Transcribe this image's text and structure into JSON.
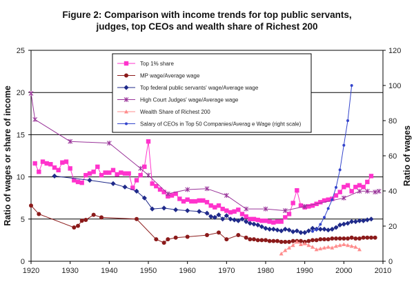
{
  "chart_data": {
    "type": "line",
    "title_lines": [
      "Figure 2: Comparison with income trends for top public servants,",
      "judges, top CEOs and wealth share of Richest 200"
    ],
    "xlabel": "",
    "ylabel": "Ratio of wages or share of income",
    "y2label": "Ratio of wages",
    "xlim": [
      1920,
      2010
    ],
    "ylim": [
      0,
      25
    ],
    "y2lim": [
      0,
      120
    ],
    "x_ticks": [
      1920,
      1930,
      1940,
      1950,
      1960,
      1970,
      1980,
      1990,
      2000,
      2010
    ],
    "y_ticks": [
      0,
      5,
      10,
      15,
      20,
      25
    ],
    "y2_ticks": [
      0,
      20,
      40,
      60,
      80,
      100,
      120
    ],
    "grid": "horizontal",
    "legend_position": "top-center",
    "series": [
      {
        "name": "Top 1% share",
        "color": "#ff33cc",
        "marker": "square",
        "axis": "left",
        "x": [
          1921,
          1922,
          1923,
          1924,
          1925,
          1926,
          1927,
          1928,
          1929,
          1930,
          1931,
          1932,
          1933,
          1934,
          1935,
          1936,
          1937,
          1938,
          1939,
          1940,
          1941,
          1942,
          1943,
          1944,
          1945,
          1946,
          1947,
          1948,
          1949,
          1950,
          1951,
          1952,
          1953,
          1954,
          1955,
          1956,
          1957,
          1958,
          1959,
          1960,
          1961,
          1962,
          1963,
          1964,
          1965,
          1966,
          1967,
          1968,
          1969,
          1970,
          1971,
          1972,
          1973,
          1974,
          1975,
          1976,
          1977,
          1978,
          1979,
          1980,
          1981,
          1982,
          1983,
          1984,
          1985,
          1986,
          1987,
          1988,
          1989,
          1990,
          1991,
          1992,
          1993,
          1994,
          1995,
          1996,
          1997,
          1998,
          1999,
          2000,
          2001,
          2002,
          2003,
          2004,
          2005,
          2006,
          2007
        ],
        "values": [
          11.6,
          10.6,
          11.8,
          11.6,
          11.5,
          11.1,
          10.8,
          11.7,
          11.8,
          11.0,
          9.6,
          9.4,
          9.3,
          10.2,
          10.4,
          10.6,
          11.2,
          10.2,
          10.5,
          10.5,
          10.8,
          10.3,
          10.5,
          10.4,
          10.4,
          8.7,
          9.6,
          10.2,
          11.2,
          14.2,
          9.2,
          8.9,
          8.5,
          8.2,
          7.7,
          7.8,
          8.0,
          7.4,
          7.1,
          7.3,
          7.1,
          7.1,
          7.2,
          7.2,
          7.0,
          6.6,
          6.4,
          6.6,
          6.2,
          6.0,
          5.8,
          5.9,
          6.1,
          5.6,
          5.3,
          5.0,
          5.0,
          4.9,
          4.8,
          4.8,
          4.7,
          4.6,
          4.7,
          4.7,
          5.2,
          5.6,
          6.9,
          8.4,
          6.6,
          6.4,
          6.5,
          6.6,
          6.8,
          7.0,
          7.2,
          7.3,
          7.4,
          7.8,
          8.2,
          8.8,
          9.0,
          8.3,
          8.8,
          9.0,
          8.8,
          9.4,
          10.1
        ]
      },
      {
        "name": "MP wage/Average  wage",
        "color": "#8b1a1a",
        "marker": "circle",
        "axis": "left",
        "x": [
          1920,
          1922,
          1931,
          1932,
          1933,
          1934,
          1936,
          1938,
          1947,
          1952,
          1954,
          1955,
          1957,
          1960,
          1965,
          1968,
          1970,
          1973,
          1975,
          1976,
          1977,
          1978,
          1979,
          1980,
          1981,
          1982,
          1983,
          1984,
          1985,
          1986,
          1987,
          1988,
          1989,
          1990,
          1991,
          1992,
          1993,
          1994,
          1995,
          1996,
          1997,
          1998,
          1999,
          2000,
          2001,
          2002,
          2003,
          2004,
          2005,
          2006,
          2007,
          2008
        ],
        "values": [
          6.6,
          5.6,
          4.0,
          4.2,
          4.8,
          4.9,
          5.5,
          5.2,
          5.0,
          2.6,
          2.2,
          2.6,
          2.8,
          2.9,
          3.1,
          3.4,
          2.6,
          3.1,
          2.8,
          2.6,
          2.6,
          2.5,
          2.5,
          2.5,
          2.4,
          2.4,
          2.4,
          2.3,
          2.3,
          2.3,
          2.4,
          2.4,
          2.4,
          2.3,
          2.4,
          2.5,
          2.5,
          2.6,
          2.6,
          2.6,
          2.7,
          2.7,
          2.7,
          2.7,
          2.7,
          2.8,
          2.7,
          2.7,
          2.8,
          2.8,
          2.8,
          2.8
        ]
      },
      {
        "name": "Top federal public servants' wage/Average  wage",
        "color": "#1f2a8a",
        "marker": "diamond",
        "axis": "left",
        "x": [
          1926,
          1935,
          1941,
          1944,
          1947,
          1949,
          1951,
          1954,
          1957,
          1960,
          1963,
          1965,
          1966,
          1967,
          1968,
          1969,
          1970,
          1971,
          1972,
          1973,
          1974,
          1975,
          1976,
          1977,
          1978,
          1979,
          1980,
          1981,
          1982,
          1983,
          1984,
          1985,
          1986,
          1987,
          1988,
          1989,
          1990,
          1991,
          1992,
          1993,
          1994,
          1995,
          1996,
          1997,
          1998,
          1999,
          2000,
          2001,
          2002,
          2003,
          2004,
          2005,
          2006,
          2007
        ],
        "values": [
          10.1,
          9.6,
          9.2,
          8.8,
          8.3,
          7.5,
          6.2,
          6.3,
          6.1,
          6.0,
          5.9,
          5.7,
          5.3,
          5.2,
          5.5,
          5.0,
          5.4,
          5.0,
          4.9,
          4.8,
          5.0,
          4.7,
          4.5,
          4.4,
          4.3,
          4.1,
          3.9,
          3.8,
          3.8,
          3.7,
          3.6,
          3.8,
          3.7,
          3.5,
          3.6,
          3.4,
          3.4,
          3.6,
          3.9,
          3.8,
          3.8,
          3.8,
          3.7,
          3.8,
          4.0,
          4.3,
          4.4,
          4.5,
          4.7,
          4.7,
          4.8,
          4.8,
          4.9,
          5.0
        ]
      },
      {
        "name": "High Court Judges' wage/Average  wage",
        "color": "#993399",
        "marker": "x",
        "axis": "left",
        "x": [
          1920,
          1921,
          1930,
          1940,
          1948,
          1950,
          1955,
          1960,
          1965,
          1970,
          1975,
          1980,
          1985,
          1990,
          2000,
          2004,
          2006,
          2008,
          2009
        ],
        "values": [
          19.9,
          16.8,
          14.2,
          14.0,
          11.0,
          10.2,
          8.0,
          8.5,
          8.6,
          7.8,
          6.2,
          6.2,
          6.0,
          6.5,
          7.5,
          8.3,
          8.3,
          8.2,
          8.3
        ]
      },
      {
        "name": "Wealth Share  of  Richest 200",
        "color": "#ff8c8c",
        "marker": "triangle",
        "axis": "left",
        "x": [
          1984,
          1985,
          1986,
          1987,
          1988,
          1989,
          1990,
          1991,
          1992,
          1993,
          1994,
          1995,
          1996,
          1997,
          1998,
          1999,
          2000,
          2001,
          2002,
          2003,
          2004
        ],
        "values": [
          0.9,
          1.3,
          1.6,
          1.9,
          2.3,
          2.0,
          2.1,
          1.9,
          1.7,
          1.4,
          1.5,
          1.6,
          1.7,
          1.6,
          1.8,
          1.9,
          2.0,
          1.9,
          1.8,
          1.7,
          1.4
        ]
      },
      {
        "name": "Salary of CEOs in Top 50 Companies/Averag e  Wage (right scale)",
        "color": "#3344cc",
        "marker": "dot",
        "axis": "right",
        "x": [
          1992,
          1993,
          1994,
          1995,
          1996,
          1997,
          1998,
          1999,
          2000,
          2001,
          2002
        ],
        "values": [
          17,
          18,
          21,
          25,
          30,
          35,
          42,
          52,
          66,
          80,
          100
        ]
      }
    ]
  }
}
